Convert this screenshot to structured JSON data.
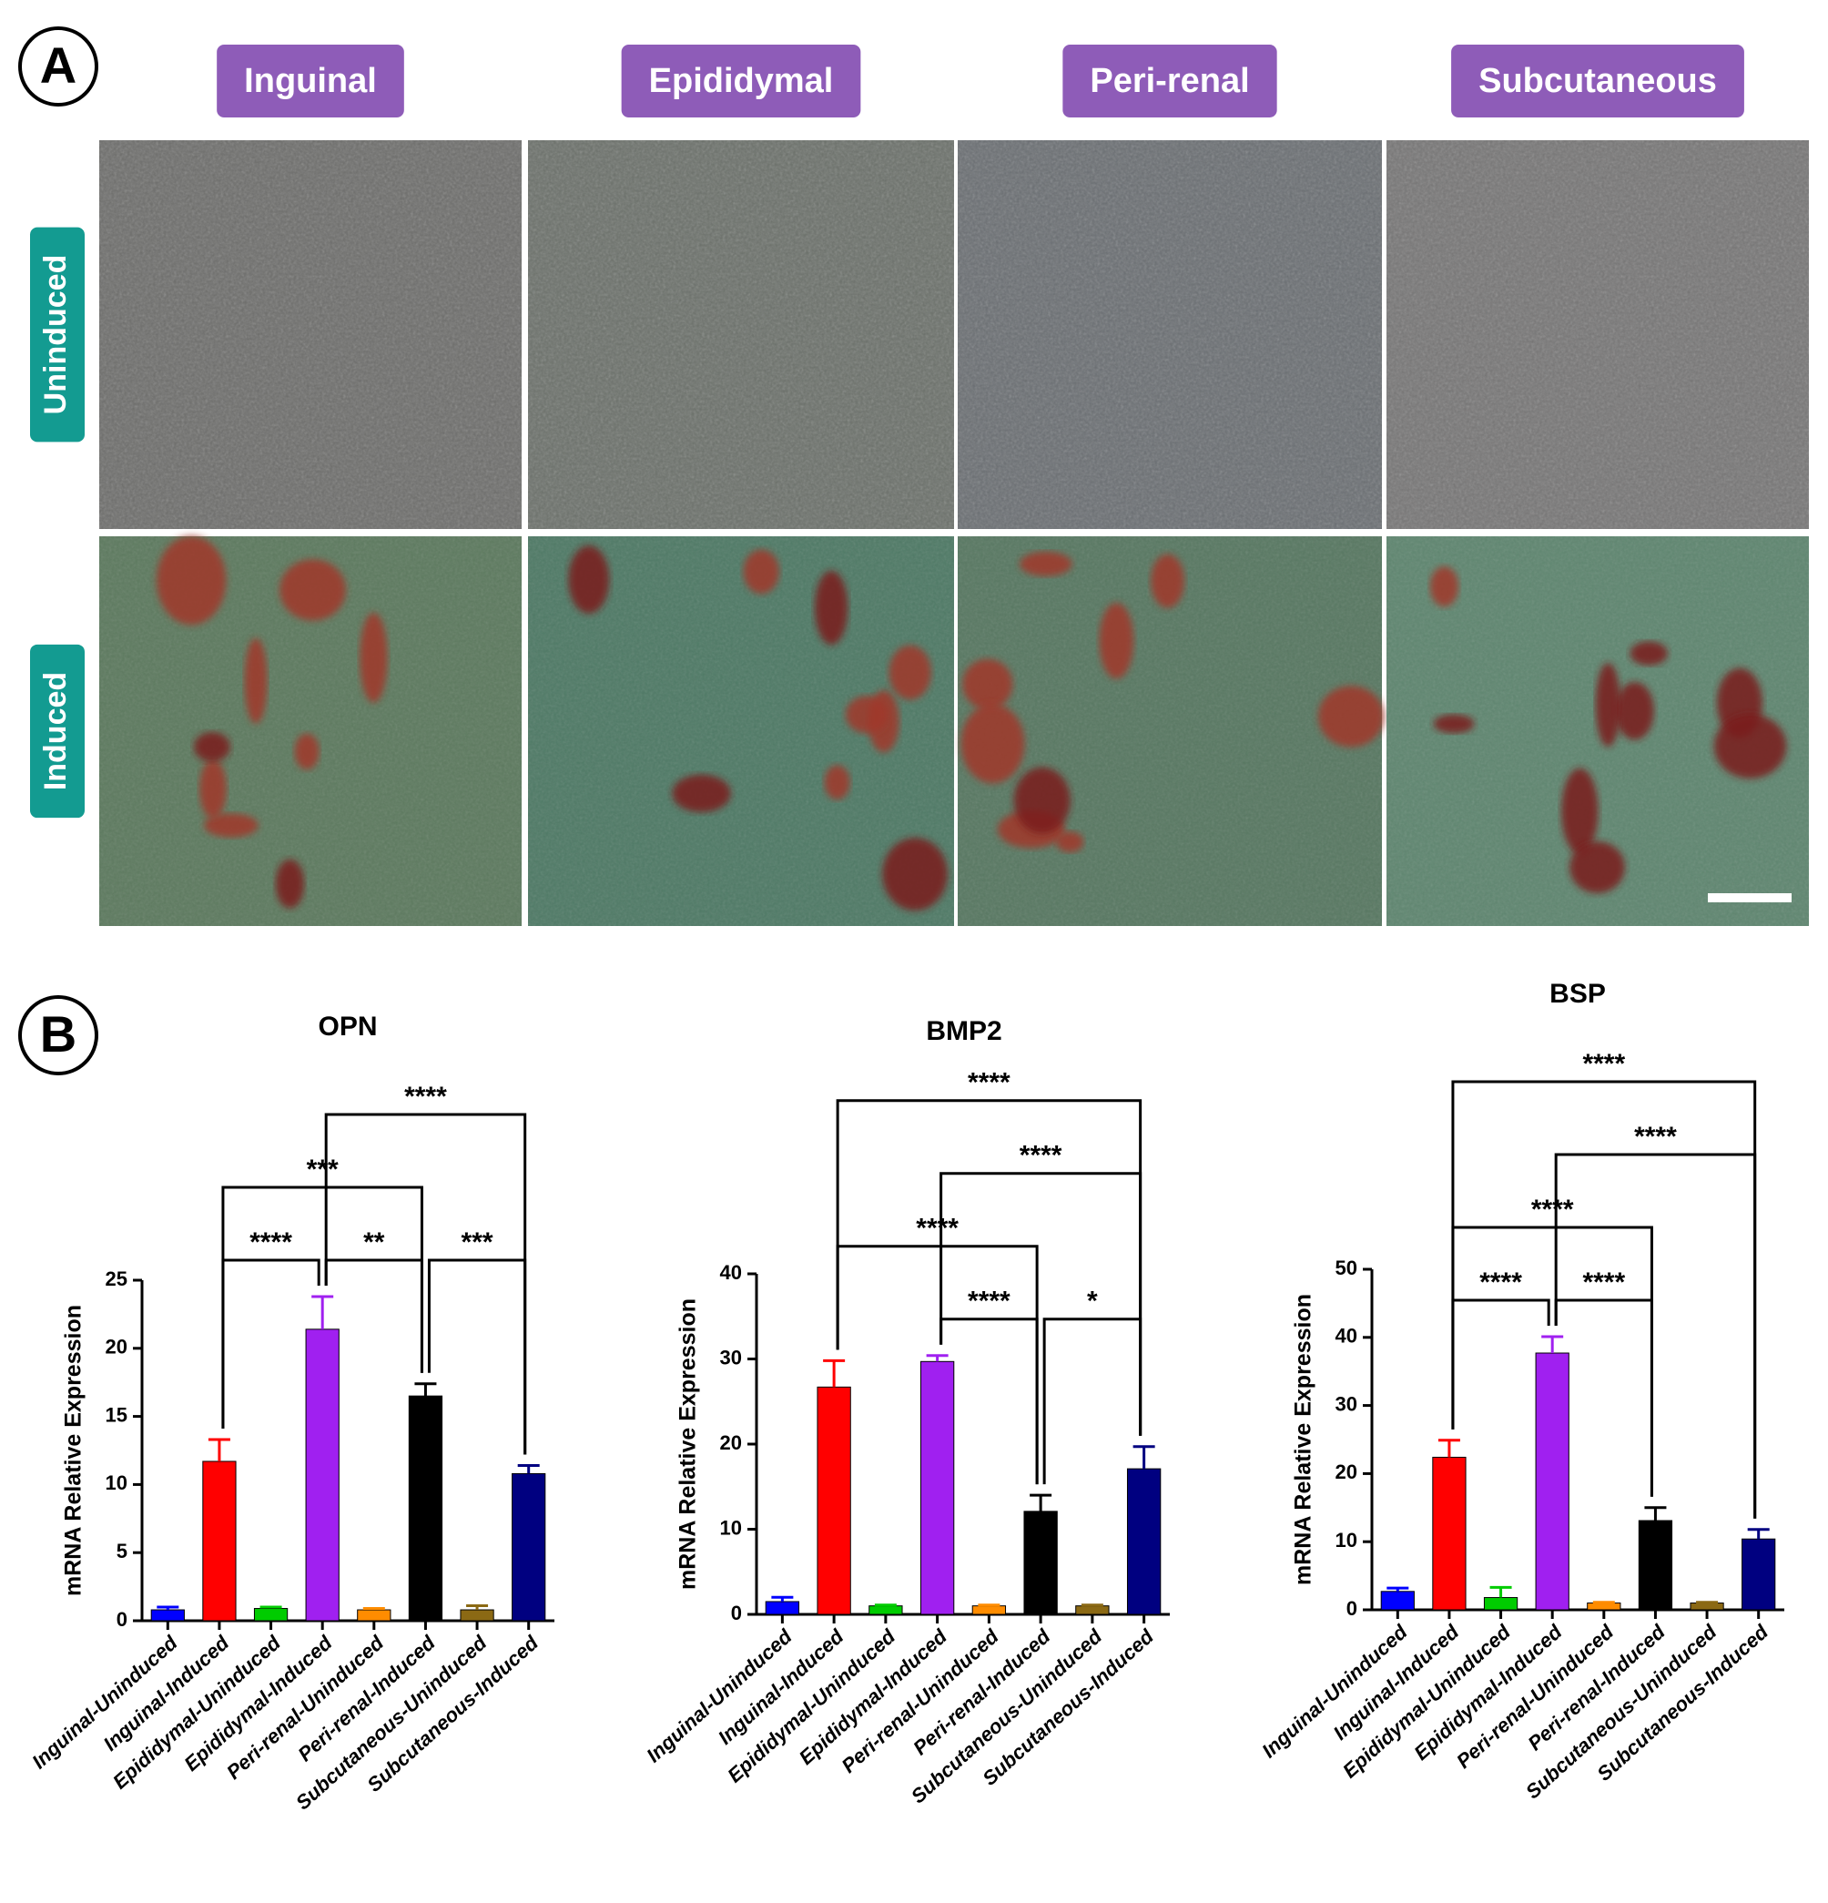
{
  "panels": [
    {
      "label": "A",
      "columns": [
        "Inguinal",
        "Epididymal",
        "Peri-renal",
        "Subcutaneous"
      ],
      "rows": [
        "Uninduced",
        "Induced"
      ]
    },
    {
      "label": "B"
    }
  ],
  "chart_data": [
    {
      "type": "bar",
      "title": "OPN",
      "y_label": "mRNA Relative Expression",
      "categories": [
        "Inguinal-Uninduced",
        "Inguinal-Induced",
        "Epididymal-Uninduced",
        "Epididymal-Induced",
        "Peri-renal-Uninduced",
        "Peri-renal-Induced",
        "Subcutaneous-Uninduced",
        "Subcutaneous-Induced"
      ],
      "values": [
        0.8,
        11.7,
        0.9,
        21.4,
        0.8,
        16.5,
        0.8,
        10.8
      ],
      "errors": [
        0.2,
        1.6,
        0.1,
        2.4,
        0.1,
        0.9,
        0.3,
        0.6
      ],
      "colors": [
        "#0000ff",
        "#ff0000",
        "#00cc00",
        "#a020f0",
        "#ff8c00",
        "#000000",
        "#8b6914",
        "#000080"
      ],
      "ylim": [
        0,
        25
      ],
      "yticks": [
        0,
        5,
        10,
        15,
        20,
        25
      ],
      "annotations": [
        {
          "text": "****",
          "between": [
            "Inguinal-Induced",
            "Epididymal-Induced"
          ]
        },
        {
          "text": "**",
          "between": [
            "Epididymal-Induced",
            "Peri-renal-Induced"
          ]
        },
        {
          "text": "***",
          "between": [
            "Peri-renal-Induced",
            "Subcutaneous-Induced"
          ]
        },
        {
          "text": "***",
          "between": [
            "Inguinal-Induced",
            "Peri-renal-Induced"
          ]
        },
        {
          "text": "****",
          "between": [
            "Epididymal-Induced",
            "Subcutaneous-Induced"
          ]
        }
      ]
    },
    {
      "type": "bar",
      "title": "BMP2",
      "y_label": "mRNA Relative Expression",
      "categories": [
        "Inguinal-Uninduced",
        "Inguinal-Induced",
        "Epididymal-Uninduced",
        "Epididymal-Induced",
        "Peri-renal-Uninduced",
        "Peri-renal-Induced",
        "Subcutaneous-Uninduced",
        "Subcutaneous-Induced"
      ],
      "values": [
        1.5,
        26.7,
        1.0,
        29.7,
        1.0,
        12.1,
        1.0,
        17.1
      ],
      "errors": [
        0.5,
        3.1,
        0.1,
        0.7,
        0.1,
        1.9,
        0.1,
        2.6
      ],
      "colors": [
        "#0000ff",
        "#ff0000",
        "#00cc00",
        "#a020f0",
        "#ff8c00",
        "#000000",
        "#8b6914",
        "#000080"
      ],
      "ylim": [
        0,
        40
      ],
      "yticks": [
        0,
        10,
        20,
        30,
        40
      ],
      "annotations": [
        {
          "text": "****",
          "between": [
            "Epididymal-Induced",
            "Peri-renal-Induced"
          ]
        },
        {
          "text": "*",
          "between": [
            "Peri-renal-Induced",
            "Subcutaneous-Induced"
          ]
        },
        {
          "text": "****",
          "between": [
            "Inguinal-Induced",
            "Peri-renal-Induced"
          ]
        },
        {
          "text": "****",
          "between": [
            "Epididymal-Induced",
            "Subcutaneous-Induced"
          ]
        },
        {
          "text": "****",
          "between": [
            "Inguinal-Induced",
            "Subcutaneous-Induced"
          ]
        }
      ]
    },
    {
      "type": "bar",
      "title": "BSP",
      "y_label": "mRNA Relative Expression",
      "categories": [
        "Inguinal-Uninduced",
        "Inguinal-Induced",
        "Epididymal-Uninduced",
        "Epididymal-Induced",
        "Peri-renal-Uninduced",
        "Peri-renal-Induced",
        "Subcutaneous-Uninduced",
        "Subcutaneous-Induced"
      ],
      "values": [
        2.7,
        22.4,
        1.8,
        37.7,
        1.0,
        13.1,
        1.0,
        10.4
      ],
      "errors": [
        0.5,
        2.5,
        1.5,
        2.4,
        0.1,
        1.9,
        0.1,
        1.4
      ],
      "colors": [
        "#0000ff",
        "#ff0000",
        "#00cc00",
        "#a020f0",
        "#ff8c00",
        "#000000",
        "#8b6914",
        "#000080"
      ],
      "ylim": [
        0,
        50
      ],
      "yticks": [
        0,
        10,
        20,
        30,
        40,
        50
      ],
      "annotations": [
        {
          "text": "****",
          "between": [
            "Inguinal-Induced",
            "Epididymal-Induced"
          ]
        },
        {
          "text": "****",
          "between": [
            "Epididymal-Induced",
            "Peri-renal-Induced"
          ]
        },
        {
          "text": "****",
          "between": [
            "Inguinal-Induced",
            "Peri-renal-Induced"
          ]
        },
        {
          "text": "****",
          "between": [
            "Epididymal-Induced",
            "Subcutaneous-Induced"
          ]
        },
        {
          "text": "****",
          "between": [
            "Inguinal-Induced",
            "Subcutaneous-Induced"
          ]
        }
      ]
    }
  ]
}
